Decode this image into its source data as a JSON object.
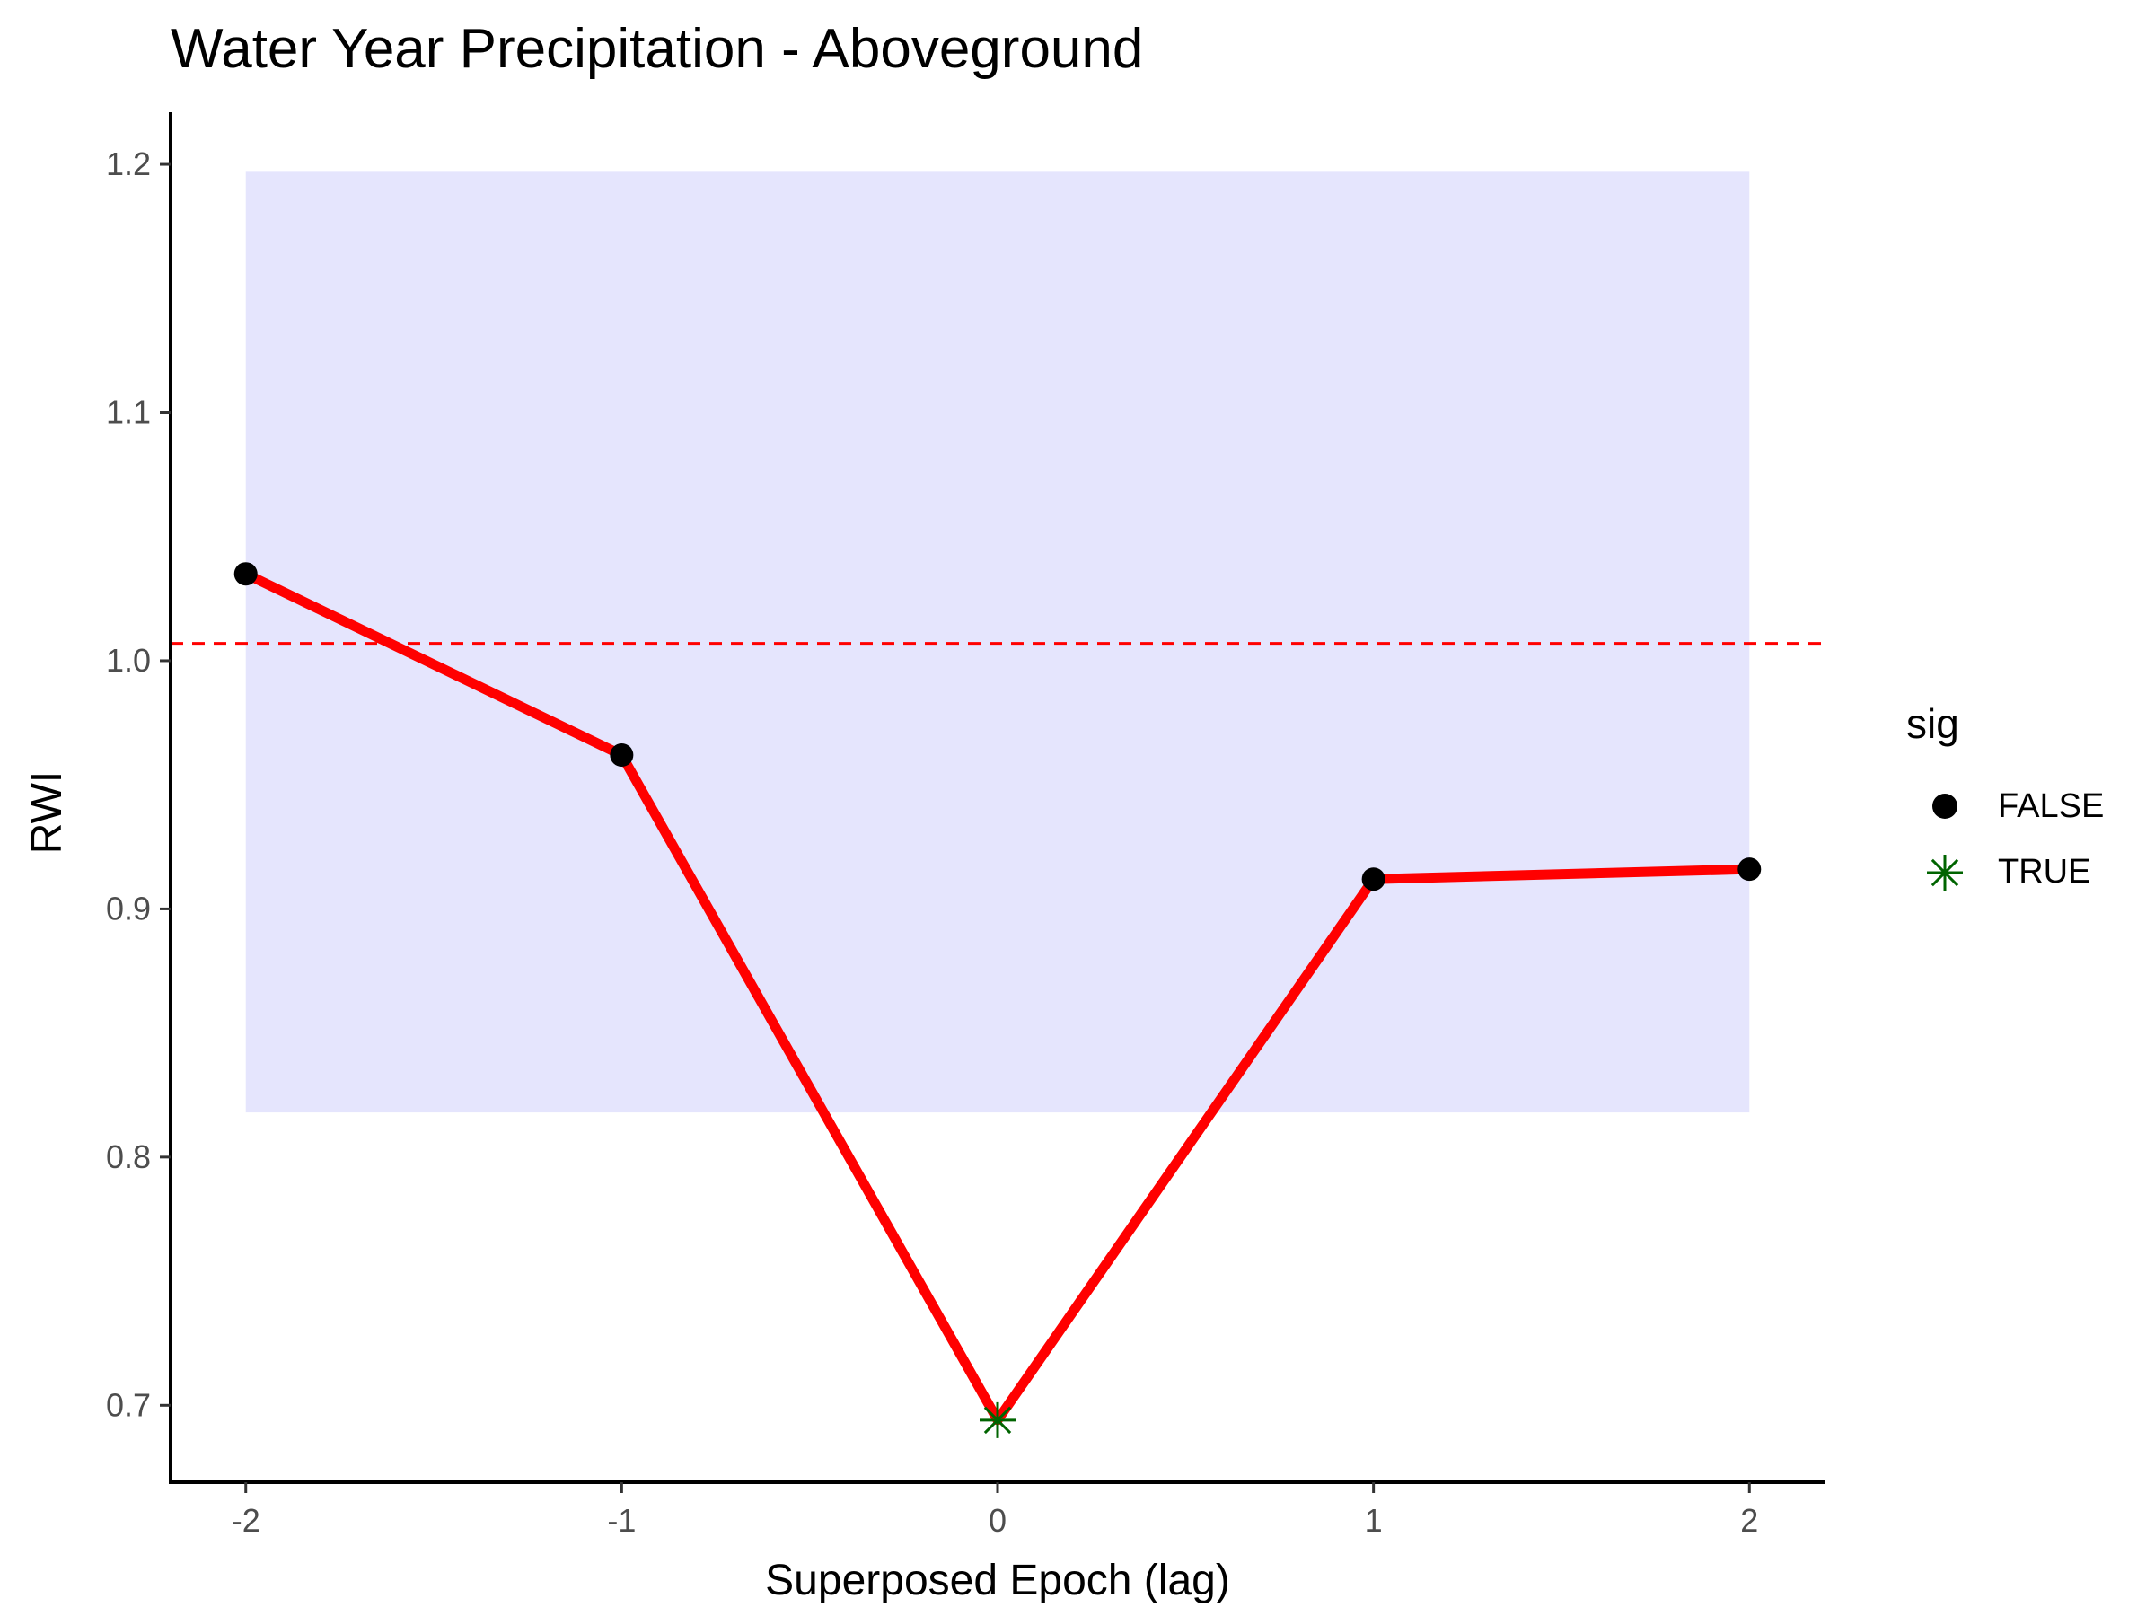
{
  "chart_data": {
    "type": "line",
    "title": "Water Year Precipitation - Aboveground",
    "xlabel": "Superposed Epoch (lag)",
    "ylabel": "RWI",
    "x": [
      -2,
      -1,
      0,
      1,
      2
    ],
    "x_tick_labels": [
      "-2",
      "-1",
      "0",
      "1",
      "2"
    ],
    "y_ticks": [
      0.7,
      0.8,
      0.9,
      1.0,
      1.1,
      1.2
    ],
    "y_tick_labels": [
      "0.7",
      "0.8",
      "0.9",
      "1.0",
      "1.1",
      "1.2"
    ],
    "xlim": [
      -2.2,
      2.2
    ],
    "ylim": [
      0.669,
      1.221
    ],
    "series": [
      {
        "values": [
          1.035,
          0.962,
          0.694,
          0.912,
          0.916
        ],
        "sig": [
          false,
          false,
          true,
          false,
          false
        ],
        "line_color": "#ff0000"
      }
    ],
    "confidence_band": {
      "x_range": [
        -2,
        2
      ],
      "y_range": [
        0.818,
        1.197
      ],
      "color": "#e5e5fd"
    },
    "reference_line": {
      "y": 1.007,
      "style": "dashed",
      "color": "#ff0000"
    },
    "legend": {
      "title": "sig",
      "position": "right",
      "entries": [
        {
          "label": "FALSE",
          "marker": "circle",
          "color": "#000000"
        },
        {
          "label": "TRUE",
          "marker": "asterisk",
          "color": "#006400"
        }
      ]
    },
    "grid": false
  }
}
